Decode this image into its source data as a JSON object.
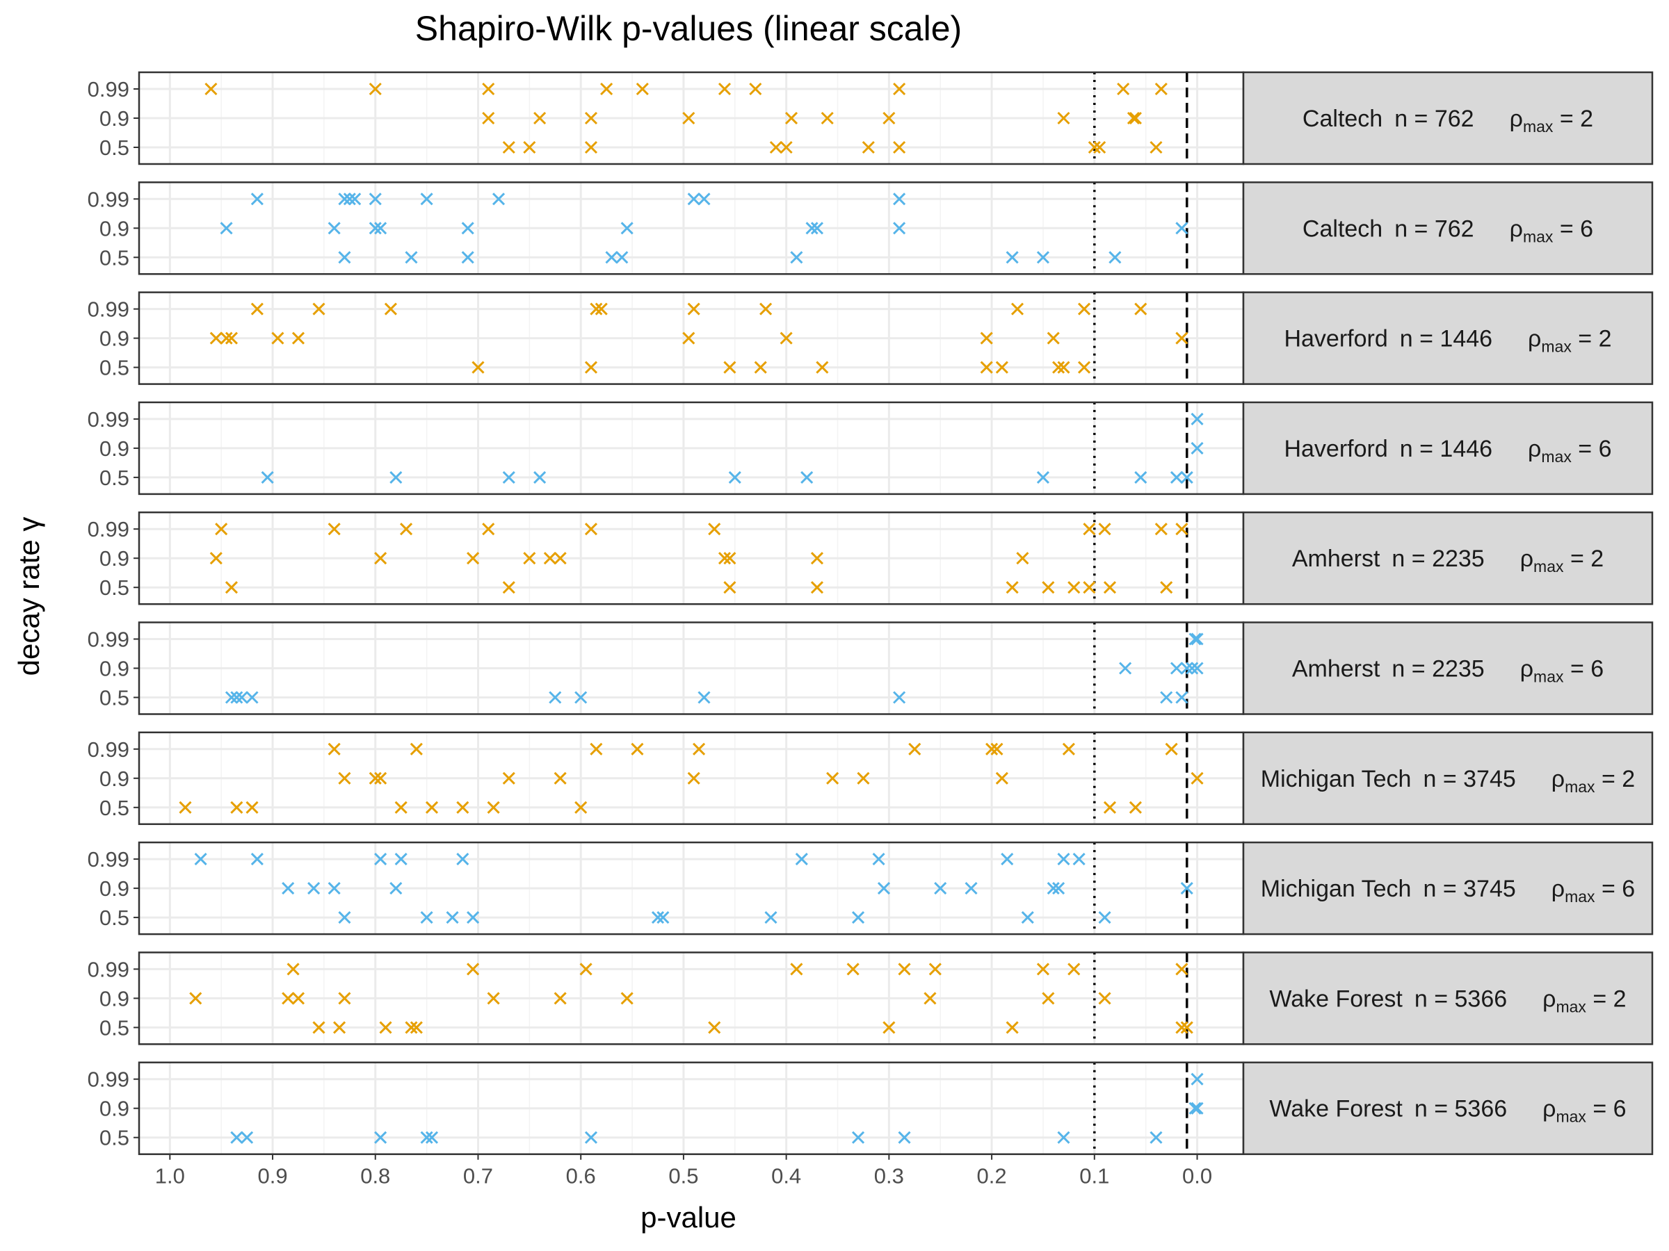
{
  "chart_data": {
    "type": "scatter",
    "title": "Shapiro-Wilk p-values (linear scale)",
    "xlabel": "p-value",
    "ylabel": "decay rate γ",
    "x_axis": {
      "reversed": true,
      "xlim": [
        1.03,
        -0.045
      ],
      "ticks": [
        1.0,
        0.9,
        0.8,
        0.7,
        0.6,
        0.5,
        0.4,
        0.3,
        0.2,
        0.1,
        0.0
      ],
      "tick_labels": [
        "1.0",
        "0.9",
        "0.8",
        "0.7",
        "0.6",
        "0.5",
        "0.4",
        "0.3",
        "0.2",
        "0.1",
        "0.0"
      ]
    },
    "y_categories": [
      "0.5",
      "0.9",
      "0.99"
    ],
    "reference_lines": [
      {
        "x": 0.1,
        "style": "dotted"
      },
      {
        "x": 0.01,
        "style": "dashed"
      }
    ],
    "colors": {
      "rho_2": "#E69F00",
      "rho_6": "#56B4E9",
      "strip_bg": "#d9d9d9",
      "grid": "#ebebeb",
      "frame": "#333333"
    },
    "panels": [
      {
        "school": "Caltech",
        "n_label": "n = 762",
        "rho_label": "ρ",
        "rho_sub": "max",
        "rho_value": "= 2",
        "color_key": "rho_2",
        "points": {
          "0.99": [
            0.96,
            0.8,
            0.69,
            0.575,
            0.54,
            0.46,
            0.43,
            0.29,
            0.072,
            0.035
          ],
          "0.9": [
            0.69,
            0.64,
            0.59,
            0.495,
            0.395,
            0.36,
            0.3,
            0.13,
            0.062,
            0.06
          ],
          "0.5": [
            0.67,
            0.65,
            0.59,
            0.41,
            0.4,
            0.32,
            0.29,
            0.1,
            0.095,
            0.04
          ]
        }
      },
      {
        "school": "Caltech",
        "n_label": "n = 762",
        "rho_label": "ρ",
        "rho_sub": "max",
        "rho_value": "= 6",
        "color_key": "rho_6",
        "points": {
          "0.99": [
            0.915,
            0.83,
            0.825,
            0.82,
            0.8,
            0.75,
            0.68,
            0.49,
            0.48,
            0.29
          ],
          "0.9": [
            0.945,
            0.84,
            0.8,
            0.795,
            0.71,
            0.555,
            0.375,
            0.37,
            0.29,
            0.015
          ],
          "0.5": [
            0.83,
            0.765,
            0.71,
            0.57,
            0.56,
            0.39,
            0.18,
            0.15,
            0.08
          ]
        }
      },
      {
        "school": "Haverford",
        "n_label": "n = 1446",
        "rho_label": "ρ",
        "rho_sub": "max",
        "rho_value": "= 2",
        "color_key": "rho_2",
        "points": {
          "0.99": [
            0.915,
            0.855,
            0.785,
            0.585,
            0.58,
            0.49,
            0.42,
            0.175,
            0.11,
            0.055
          ],
          "0.9": [
            0.955,
            0.945,
            0.94,
            0.895,
            0.875,
            0.495,
            0.4,
            0.205,
            0.14,
            0.015
          ],
          "0.5": [
            0.7,
            0.59,
            0.455,
            0.425,
            0.365,
            0.205,
            0.19,
            0.135,
            0.13,
            0.11
          ]
        }
      },
      {
        "school": "Haverford",
        "n_label": "n = 1446",
        "rho_label": "ρ",
        "rho_sub": "max",
        "rho_value": "= 6",
        "color_key": "rho_6",
        "points": {
          "0.99": [
            0.0
          ],
          "0.9": [
            0.0
          ],
          "0.5": [
            0.905,
            0.78,
            0.67,
            0.64,
            0.45,
            0.38,
            0.15,
            0.055,
            0.02,
            0.01
          ]
        }
      },
      {
        "school": "Amherst",
        "n_label": "n = 2235",
        "rho_label": "ρ",
        "rho_sub": "max",
        "rho_value": "= 2",
        "color_key": "rho_2",
        "points": {
          "0.99": [
            0.95,
            0.84,
            0.77,
            0.69,
            0.59,
            0.47,
            0.105,
            0.09,
            0.035,
            0.015
          ],
          "0.9": [
            0.955,
            0.795,
            0.705,
            0.65,
            0.63,
            0.62,
            0.46,
            0.455,
            0.37,
            0.17
          ],
          "0.5": [
            0.94,
            0.67,
            0.455,
            0.37,
            0.18,
            0.145,
            0.12,
            0.105,
            0.085,
            0.03
          ]
        }
      },
      {
        "school": "Amherst",
        "n_label": "n = 2235",
        "rho_label": "ρ",
        "rho_sub": "max",
        "rho_value": "= 6",
        "color_key": "rho_6",
        "points": {
          "0.99": [
            0.002,
            0.0
          ],
          "0.9": [
            0.07,
            0.02,
            0.01,
            0.005,
            0.0
          ],
          "0.5": [
            0.94,
            0.935,
            0.93,
            0.92,
            0.625,
            0.6,
            0.48,
            0.29,
            0.03,
            0.015
          ]
        }
      },
      {
        "school": "Michigan Tech",
        "n_label": "n = 3745",
        "rho_label": "ρ",
        "rho_sub": "max",
        "rho_value": "= 2",
        "color_key": "rho_2",
        "points": {
          "0.99": [
            0.84,
            0.76,
            0.585,
            0.545,
            0.485,
            0.275,
            0.2,
            0.195,
            0.125,
            0.025
          ],
          "0.9": [
            0.83,
            0.8,
            0.795,
            0.67,
            0.62,
            0.49,
            0.355,
            0.325,
            0.19,
            0.0
          ],
          "0.5": [
            0.985,
            0.935,
            0.92,
            0.775,
            0.745,
            0.715,
            0.685,
            0.6,
            0.085,
            0.06
          ]
        }
      },
      {
        "school": "Michigan Tech",
        "n_label": "n = 3745",
        "rho_label": "ρ",
        "rho_sub": "max",
        "rho_value": "= 6",
        "color_key": "rho_6",
        "points": {
          "0.99": [
            0.97,
            0.915,
            0.795,
            0.775,
            0.715,
            0.385,
            0.31,
            0.185,
            0.13,
            0.115
          ],
          "0.9": [
            0.885,
            0.86,
            0.84,
            0.78,
            0.305,
            0.25,
            0.22,
            0.14,
            0.135,
            0.01
          ],
          "0.5": [
            0.83,
            0.75,
            0.725,
            0.705,
            0.525,
            0.52,
            0.415,
            0.33,
            0.165,
            0.09
          ]
        }
      },
      {
        "school": "Wake Forest",
        "n_label": "n = 5366",
        "rho_label": "ρ",
        "rho_sub": "max",
        "rho_value": "= 2",
        "color_key": "rho_2",
        "points": {
          "0.99": [
            0.88,
            0.705,
            0.595,
            0.39,
            0.335,
            0.285,
            0.255,
            0.15,
            0.12,
            0.015
          ],
          "0.9": [
            0.975,
            0.885,
            0.875,
            0.83,
            0.685,
            0.62,
            0.555,
            0.26,
            0.145,
            0.09
          ],
          "0.5": [
            0.855,
            0.835,
            0.79,
            0.765,
            0.76,
            0.47,
            0.3,
            0.18,
            0.015,
            0.01
          ]
        }
      },
      {
        "school": "Wake Forest",
        "n_label": "n = 5366",
        "rho_label": "ρ",
        "rho_sub": "max",
        "rho_value": "= 6",
        "color_key": "rho_6",
        "points": {
          "0.99": [
            0.0
          ],
          "0.9": [
            0.002,
            0.0
          ],
          "0.5": [
            0.935,
            0.925,
            0.795,
            0.75,
            0.745,
            0.59,
            0.33,
            0.285,
            0.13,
            0.04
          ]
        }
      }
    ]
  }
}
